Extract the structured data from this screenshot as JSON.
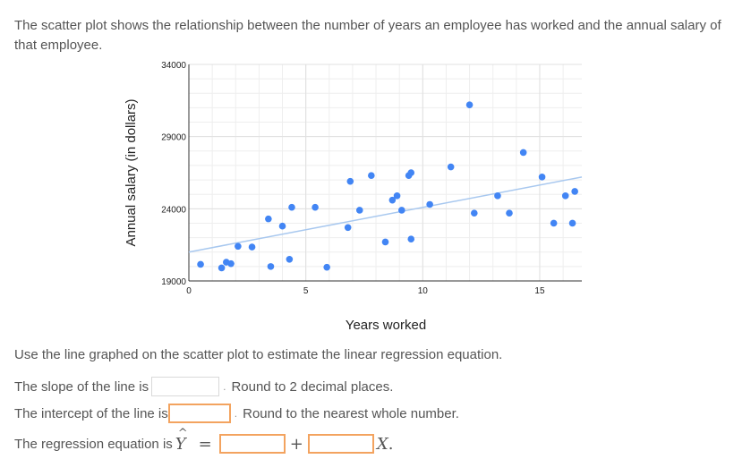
{
  "question": {
    "text": "The scatter plot shows the relationship between the number of years an employee has worked and the annual salary of that employee."
  },
  "instruction": "Use the line graphed on the scatter plot to estimate the linear regression equation.",
  "slope_row": {
    "label": "The slope of the line is",
    "value": "",
    "hint": "Round to 2 decimal places."
  },
  "intercept_row": {
    "label": "The intercept of the line is",
    "value": "",
    "hint": "Round to the nearest whole number."
  },
  "equation_row": {
    "label": "The regression equation is",
    "y_symbol": "Y",
    "hat_symbol": "^",
    "equals": "=",
    "plus": "+",
    "x_symbol": "X",
    "period": ".",
    "first_value": "",
    "second_value": ""
  },
  "colors": {
    "point": "#4285f4",
    "trend_line": "#a8c8ef",
    "grid": "#e0e0e0",
    "input_border_active": "#f3a35f",
    "input_border": "#d9d9d9"
  },
  "chart_data": {
    "type": "scatter",
    "title": "",
    "xlabel": "Years worked",
    "ylabel": "Annual salary (in dollars)",
    "xlim": [
      0,
      16.8
    ],
    "ylim": [
      19000,
      34000
    ],
    "x_ticks": [
      0,
      5,
      10,
      15
    ],
    "y_ticks": [
      19000,
      24000,
      29000,
      34000
    ],
    "x_tick_labels": [
      "0",
      "5",
      "10",
      "15"
    ],
    "y_tick_labels": [
      "19000",
      "24000",
      "29000",
      "34000"
    ],
    "grid": true,
    "points": [
      {
        "x": 0.5,
        "y": 20150
      },
      {
        "x": 1.4,
        "y": 19900
      },
      {
        "x": 1.6,
        "y": 20300
      },
      {
        "x": 1.8,
        "y": 20200
      },
      {
        "x": 2.1,
        "y": 21400
      },
      {
        "x": 2.7,
        "y": 21350
      },
      {
        "x": 3.4,
        "y": 23300
      },
      {
        "x": 3.5,
        "y": 20000
      },
      {
        "x": 4.0,
        "y": 22800
      },
      {
        "x": 4.3,
        "y": 20500
      },
      {
        "x": 4.4,
        "y": 24100
      },
      {
        "x": 5.4,
        "y": 24100
      },
      {
        "x": 5.9,
        "y": 19950
      },
      {
        "x": 6.8,
        "y": 22700
      },
      {
        "x": 6.9,
        "y": 25900
      },
      {
        "x": 7.3,
        "y": 23900
      },
      {
        "x": 7.8,
        "y": 26300
      },
      {
        "x": 8.4,
        "y": 21700
      },
      {
        "x": 8.7,
        "y": 24600
      },
      {
        "x": 8.9,
        "y": 24900
      },
      {
        "x": 9.1,
        "y": 23900
      },
      {
        "x": 9.4,
        "y": 26300
      },
      {
        "x": 9.5,
        "y": 26500
      },
      {
        "x": 9.5,
        "y": 21900
      },
      {
        "x": 10.3,
        "y": 24300
      },
      {
        "x": 11.2,
        "y": 26900
      },
      {
        "x": 12.0,
        "y": 31200
      },
      {
        "x": 12.2,
        "y": 23700
      },
      {
        "x": 13.2,
        "y": 24900
      },
      {
        "x": 13.7,
        "y": 23700
      },
      {
        "x": 14.3,
        "y": 27900
      },
      {
        "x": 15.1,
        "y": 26200
      },
      {
        "x": 15.6,
        "y": 23000
      },
      {
        "x": 16.1,
        "y": 24900
      },
      {
        "x": 16.4,
        "y": 23000
      },
      {
        "x": 16.5,
        "y": 25200
      }
    ],
    "trend_line": {
      "x": [
        0,
        16.8
      ],
      "y": [
        21000,
        26200
      ]
    }
  }
}
